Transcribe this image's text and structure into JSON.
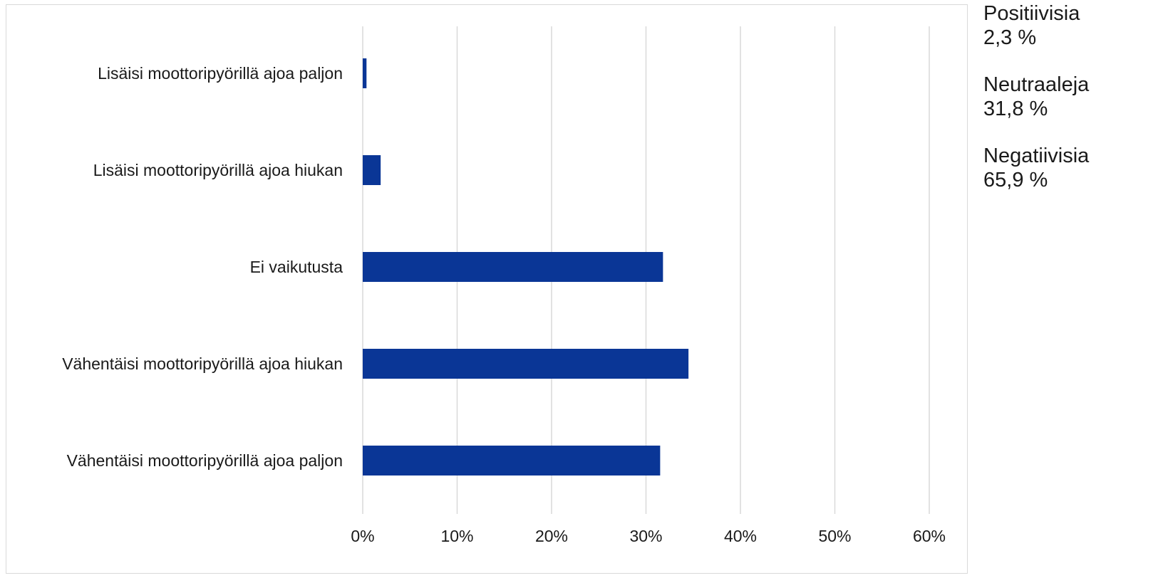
{
  "chart_data": {
    "type": "bar",
    "orientation": "horizontal",
    "categories": [
      "Lisäisi moottoripyörillä ajoa paljon",
      "Lisäisi moottoripyörillä ajoa hiukan",
      "Ei vaikutusta",
      "Vähentäisi moottoripyörillä ajoa hiukan",
      "Vähentäisi moottoripyörillä ajoa paljon"
    ],
    "values": [
      0.4,
      1.9,
      31.8,
      34.5,
      31.5
    ],
    "xlim": [
      0,
      60
    ],
    "xticks": [
      "0%",
      "10%",
      "20%",
      "30%",
      "40%",
      "50%",
      "60%"
    ],
    "grid": true,
    "bar_color": "#0a3696",
    "grid_color": "#d9d9d9"
  },
  "summary": [
    {
      "label": "Positiivisia",
      "value": "2,3 %"
    },
    {
      "label": "Neutraaleja",
      "value": "31,8 %"
    },
    {
      "label": "Negatiivisia",
      "value": "65,9 %"
    }
  ]
}
